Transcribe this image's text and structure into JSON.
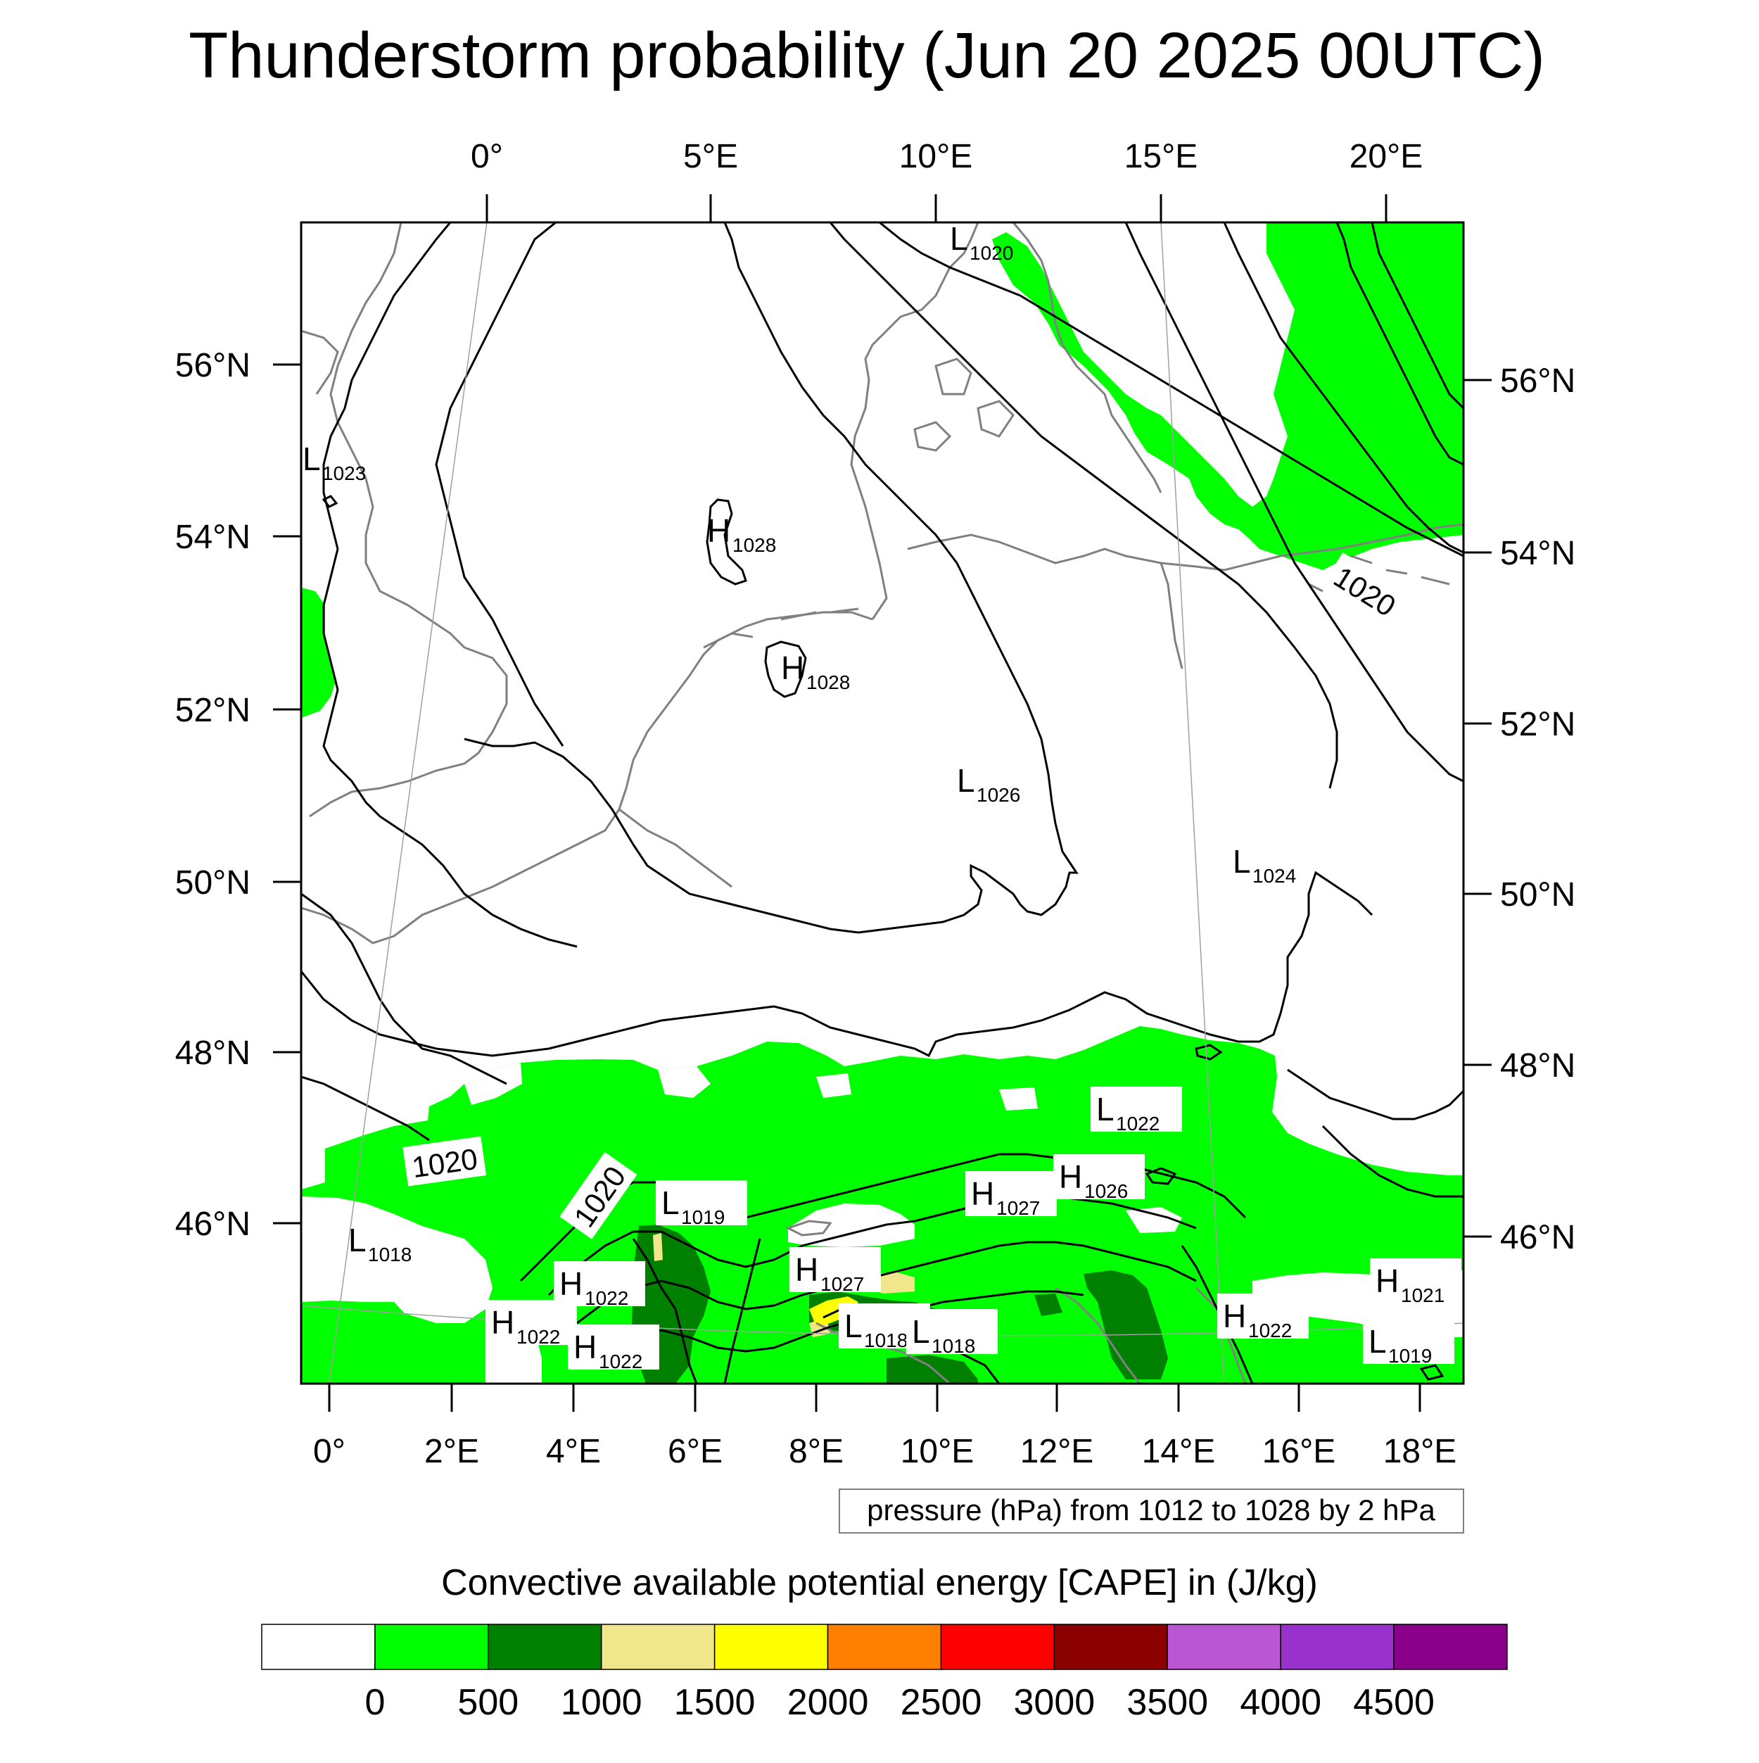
{
  "title": "Thunderstorm probability (Jun 20 2025 00UTC)",
  "lon_top_labels": [
    "0°",
    "5°E",
    "10°E",
    "15°E",
    "20°E"
  ],
  "lon_bottom_labels": [
    "0°",
    "2°E",
    "4°E",
    "6°E",
    "8°E",
    "10°E",
    "12°E",
    "14°E",
    "16°E",
    "18°E"
  ],
  "lat_left_labels": [
    "56°N",
    "54°N",
    "52°N",
    "50°N",
    "48°N",
    "46°N"
  ],
  "lat_right_labels": [
    "56°N",
    "54°N",
    "52°N",
    "50°N",
    "48°N",
    "46°N"
  ],
  "pressure_centers": [
    {
      "type": "L",
      "value": "1020"
    },
    {
      "type": "L",
      "value": "1023"
    },
    {
      "type": "H",
      "value": "1028"
    },
    {
      "type": "H",
      "value": "1028"
    },
    {
      "type": "L",
      "value": "1026"
    },
    {
      "type": "L",
      "value": "1024"
    },
    {
      "type": "L",
      "value": "1022"
    },
    {
      "type": "H",
      "value": "1026"
    },
    {
      "type": "H",
      "value": "1027"
    },
    {
      "type": "L",
      "value": "1019"
    },
    {
      "type": "L",
      "value": "1018"
    },
    {
      "type": "H",
      "value": "1022"
    },
    {
      "type": "H",
      "value": "1022"
    },
    {
      "type": "H",
      "value": "1022"
    },
    {
      "type": "H",
      "value": "1027"
    },
    {
      "type": "L",
      "value": "1018"
    },
    {
      "type": "L",
      "value": "1018"
    },
    {
      "type": "H",
      "value": "1022"
    },
    {
      "type": "H",
      "value": "1021"
    },
    {
      "type": "L",
      "value": "1019"
    }
  ],
  "isobar_labels": [
    "1020",
    "1020",
    "1020"
  ],
  "contour_info": "pressure (hPa) from 1012 to 1028 by 2 hPa",
  "legend": {
    "title": "Convective available potential energy [CAPE] in (J/kg)",
    "colors": [
      "#ffffff",
      "#00ff00",
      "#008000",
      "#f0e68c",
      "#ffff00",
      "#ff8000",
      "#ff0000",
      "#8b0000",
      "#ba55d3",
      "#9932cc",
      "#8b008b"
    ],
    "labels": [
      "0",
      "500",
      "1000",
      "1500",
      "2000",
      "2500",
      "3000",
      "3500",
      "4000",
      "4500"
    ]
  },
  "colors": {
    "cape_low": "#00ff00",
    "cape_mid": "#008000",
    "cape_high": "#f0e68c",
    "cape_very_high": "#ffff00",
    "coastline": "#808080",
    "isobar": "#000000"
  }
}
